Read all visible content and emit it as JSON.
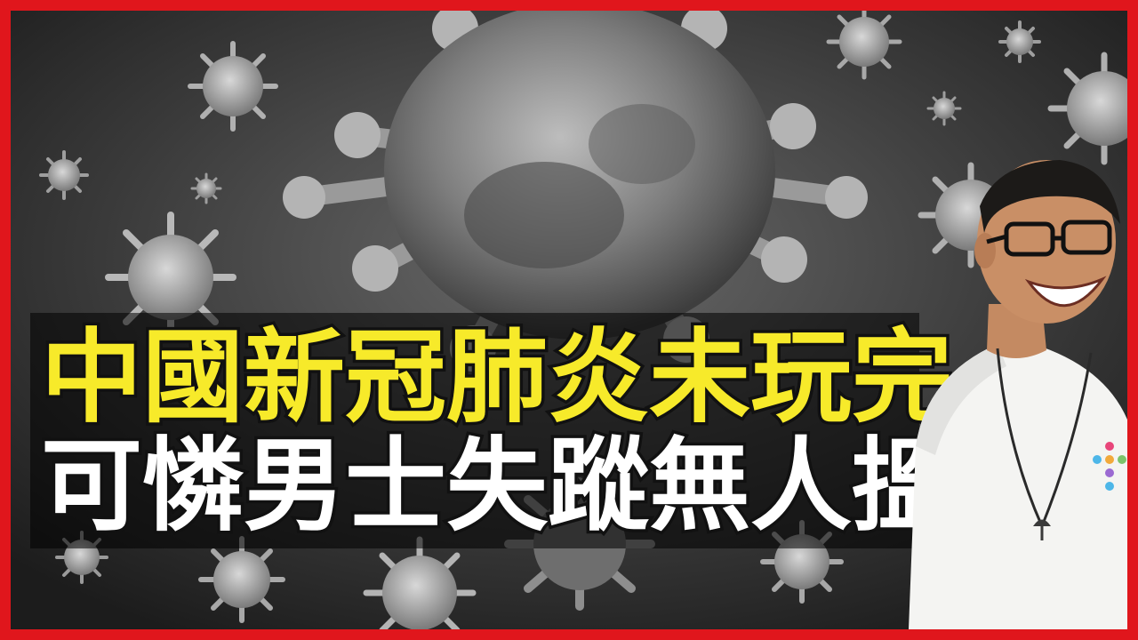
{
  "thumbnail": {
    "title_line_1": "中國新冠肺炎未玩完",
    "title_line_2": "可憐男士失蹤無人搵"
  },
  "colors": {
    "border": "#e0161c",
    "title_line_1": "#f7ea2a",
    "title_line_2": "#ffffff",
    "background": "#2b2b2b"
  },
  "icons": {
    "background": "coronavirus-particles-illustration",
    "person": "smiling-man-with-glasses-photo"
  }
}
